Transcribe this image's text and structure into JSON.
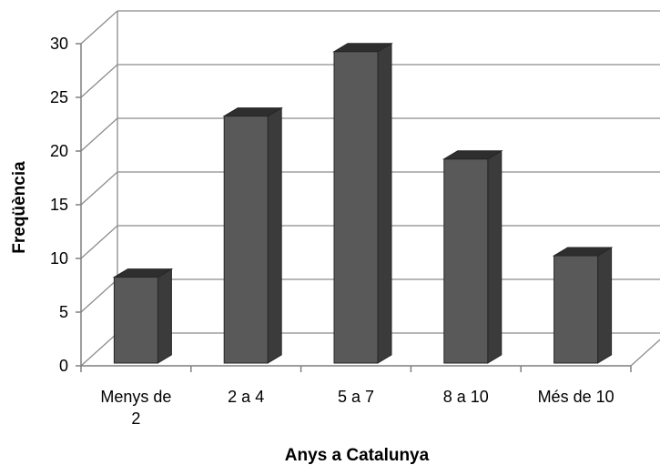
{
  "chart_data": {
    "type": "bar",
    "style": "3d-column",
    "title": "",
    "xlabel": "Anys a Catalunya",
    "ylabel": "Freqüència",
    "categories": [
      "Menys de 2",
      "2 a 4",
      "5 a 7",
      "8 a 10",
      "Més de 10"
    ],
    "category_lines": [
      [
        "Menys de",
        "2"
      ],
      [
        "2 a 4"
      ],
      [
        "5 a 7"
      ],
      [
        "8 a 10"
      ],
      [
        "Més de 10"
      ]
    ],
    "values": [
      8,
      23,
      29,
      19,
      10
    ],
    "ylim": [
      0,
      30
    ],
    "yticks": [
      "0",
      "5",
      "10",
      "15",
      "20",
      "25",
      "30"
    ],
    "grid": true,
    "legend": "none",
    "colors": {
      "bar_front": "#595959",
      "bar_side": "#3b3b3b",
      "bar_top": "#2e2e2e",
      "bar_edge": "#262626",
      "grid": "#8c8c8c",
      "axis": "#7f7f7f"
    }
  }
}
